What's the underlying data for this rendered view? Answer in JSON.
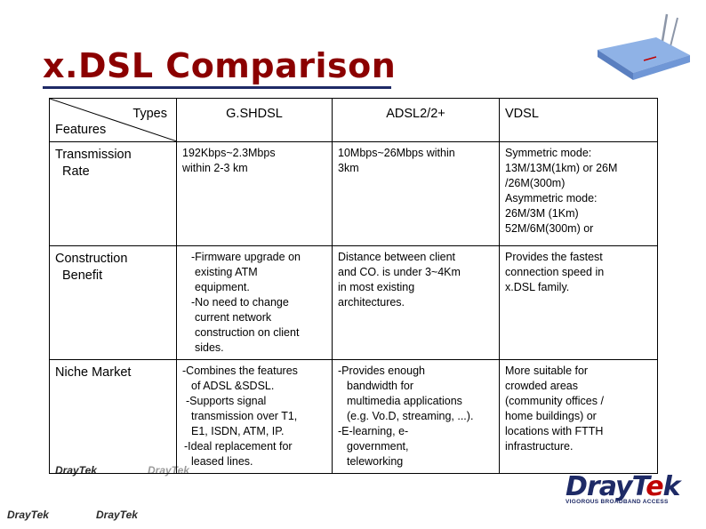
{
  "slide": {
    "title": "x.DSL Comparison"
  },
  "table": {
    "corner_top": "Types",
    "corner_bottom": "Features",
    "columns": [
      "G.SHDSL",
      "ADSL2/2+",
      "VDSL"
    ],
    "rows": [
      {
        "feature": [
          "Transmission",
          "Rate"
        ],
        "cells": [
          [
            "192Kbps~2.3Mbps",
            "within 2-3 km"
          ],
          [
            "10Mbps~26Mbps within",
            "3km"
          ],
          [
            "Symmetric mode:",
            "13M/13M(1km) or 26M",
            "/26M(300m)",
            "Asymmetric mode:",
            "26M/3M (1Km)",
            "52M/6M(300m) or"
          ]
        ]
      },
      {
        "feature": [
          "Construction",
          "Benefit"
        ],
        "cells": [
          [
            "-Firmware upgrade on",
            "existing ATM",
            "equipment.",
            "-No need to change",
            "current network",
            "construction on client",
            "sides."
          ],
          [
            "Distance between client",
            "and CO. is under 3~4Km",
            "in most existing",
            "architectures."
          ],
          [
            "Provides the fastest",
            "connection speed in",
            "x.DSL family."
          ]
        ]
      },
      {
        "feature": [
          "Niche Market"
        ],
        "cells": [
          [
            "-Combines the features",
            "of ADSL &SDSL.",
            "-Supports signal",
            "transmission over T1,",
            "E1, ISDN, ATM, IP.",
            "-Ideal replacement for",
            "leased lines."
          ],
          [
            "-Provides enough",
            "bandwidth for",
            "multimedia applications",
            "(e.g. Vo.D, streaming, ...).",
            "-E-learning, e-",
            "government,",
            "teleworking"
          ],
          [
            "More suitable for",
            "crowded areas",
            "(community offices /",
            "home buildings) or",
            "locations with FTTH",
            "infrastructure."
          ]
        ]
      }
    ]
  },
  "branding": {
    "logo_word": "DrayTek",
    "logo_prefix": "Dray",
    "logo_t": "T",
    "logo_e": "e",
    "logo_k": "k",
    "tagline": "VIGOROUS BROADBAND ACCESS",
    "watermark": "DrayTek",
    "accent_color": "#1e2a66",
    "title_color": "#8b0000"
  }
}
